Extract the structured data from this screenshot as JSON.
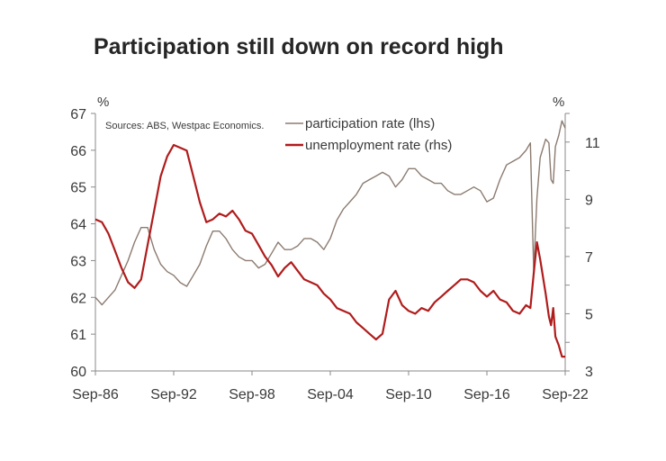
{
  "chart_data": {
    "type": "line",
    "title": "Participation still down on record high",
    "source_note": "Sources: ABS, Westpac Economics.",
    "left_axis": {
      "unit": "%",
      "ylim": [
        60,
        67
      ],
      "ticks": [
        "60",
        "61",
        "62",
        "63",
        "64",
        "65",
        "66",
        "67"
      ]
    },
    "right_axis": {
      "unit": "%",
      "ylim": [
        3,
        12
      ],
      "ticks": [
        "3",
        "5",
        "7",
        "9",
        "11"
      ]
    },
    "x_ticks": [
      "Sep-86",
      "Sep-92",
      "Sep-98",
      "Sep-04",
      "Sep-10",
      "Sep-16",
      "Sep-22"
    ],
    "x_range": [
      "1986-09",
      "2022-09"
    ],
    "legend_position": "top-right",
    "grid": false,
    "series": [
      {
        "name": "participation rate (lhs)",
        "axis": "left",
        "color": "#8c7b70",
        "points": [
          [
            "1986-09",
            62.0
          ],
          [
            "1987-03",
            61.8
          ],
          [
            "1987-09",
            62.0
          ],
          [
            "1988-03",
            62.2
          ],
          [
            "1988-09",
            62.6
          ],
          [
            "1989-03",
            63.0
          ],
          [
            "1989-09",
            63.5
          ],
          [
            "1990-03",
            63.9
          ],
          [
            "1990-09",
            63.9
          ],
          [
            "1991-03",
            63.3
          ],
          [
            "1991-09",
            62.9
          ],
          [
            "1992-03",
            62.7
          ],
          [
            "1992-09",
            62.6
          ],
          [
            "1993-03",
            62.4
          ],
          [
            "1993-09",
            62.3
          ],
          [
            "1994-03",
            62.6
          ],
          [
            "1994-09",
            62.9
          ],
          [
            "1995-03",
            63.4
          ],
          [
            "1995-09",
            63.8
          ],
          [
            "1996-03",
            63.8
          ],
          [
            "1996-09",
            63.6
          ],
          [
            "1997-03",
            63.3
          ],
          [
            "1997-09",
            63.1
          ],
          [
            "1998-03",
            63.0
          ],
          [
            "1998-09",
            63.0
          ],
          [
            "1999-03",
            62.8
          ],
          [
            "1999-09",
            62.9
          ],
          [
            "2000-03",
            63.2
          ],
          [
            "2000-09",
            63.5
          ],
          [
            "2001-03",
            63.3
          ],
          [
            "2001-09",
            63.3
          ],
          [
            "2002-03",
            63.4
          ],
          [
            "2002-09",
            63.6
          ],
          [
            "2003-03",
            63.6
          ],
          [
            "2003-09",
            63.5
          ],
          [
            "2004-03",
            63.3
          ],
          [
            "2004-09",
            63.6
          ],
          [
            "2005-03",
            64.1
          ],
          [
            "2005-09",
            64.4
          ],
          [
            "2006-03",
            64.6
          ],
          [
            "2006-09",
            64.8
          ],
          [
            "2007-03",
            65.1
          ],
          [
            "2007-09",
            65.2
          ],
          [
            "2008-03",
            65.3
          ],
          [
            "2008-09",
            65.4
          ],
          [
            "2009-03",
            65.3
          ],
          [
            "2009-09",
            65.0
          ],
          [
            "2010-03",
            65.2
          ],
          [
            "2010-09",
            65.5
          ],
          [
            "2011-03",
            65.5
          ],
          [
            "2011-09",
            65.3
          ],
          [
            "2012-03",
            65.2
          ],
          [
            "2012-09",
            65.1
          ],
          [
            "2013-03",
            65.1
          ],
          [
            "2013-09",
            64.9
          ],
          [
            "2014-03",
            64.8
          ],
          [
            "2014-09",
            64.8
          ],
          [
            "2015-03",
            64.9
          ],
          [
            "2015-09",
            65.0
          ],
          [
            "2016-03",
            64.9
          ],
          [
            "2016-09",
            64.6
          ],
          [
            "2017-03",
            64.7
          ],
          [
            "2017-09",
            65.2
          ],
          [
            "2018-03",
            65.6
          ],
          [
            "2018-09",
            65.7
          ],
          [
            "2019-03",
            65.8
          ],
          [
            "2019-09",
            66.0
          ],
          [
            "2020-01",
            66.2
          ],
          [
            "2020-04",
            62.7
          ],
          [
            "2020-07",
            64.7
          ],
          [
            "2020-10",
            65.8
          ],
          [
            "2021-03",
            66.3
          ],
          [
            "2021-06",
            66.2
          ],
          [
            "2021-08",
            65.2
          ],
          [
            "2021-10",
            65.1
          ],
          [
            "2021-12",
            66.1
          ],
          [
            "2022-03",
            66.4
          ],
          [
            "2022-06",
            66.8
          ],
          [
            "2022-09",
            66.6
          ]
        ]
      },
      {
        "name": "unemployment rate (rhs)",
        "axis": "right",
        "color": "#b01c1c",
        "points": [
          [
            "1986-09",
            8.3
          ],
          [
            "1987-03",
            8.2
          ],
          [
            "1987-09",
            7.8
          ],
          [
            "1988-03",
            7.2
          ],
          [
            "1988-09",
            6.6
          ],
          [
            "1989-03",
            6.1
          ],
          [
            "1989-09",
            5.9
          ],
          [
            "1990-03",
            6.2
          ],
          [
            "1990-09",
            7.4
          ],
          [
            "1991-03",
            8.6
          ],
          [
            "1991-09",
            9.8
          ],
          [
            "1992-03",
            10.5
          ],
          [
            "1992-09",
            10.9
          ],
          [
            "1993-03",
            10.8
          ],
          [
            "1993-09",
            10.7
          ],
          [
            "1994-03",
            9.8
          ],
          [
            "1994-09",
            8.9
          ],
          [
            "1995-03",
            8.2
          ],
          [
            "1995-09",
            8.3
          ],
          [
            "1996-03",
            8.5
          ],
          [
            "1996-09",
            8.4
          ],
          [
            "1997-03",
            8.6
          ],
          [
            "1997-09",
            8.3
          ],
          [
            "1998-03",
            7.9
          ],
          [
            "1998-09",
            7.8
          ],
          [
            "1999-03",
            7.4
          ],
          [
            "1999-09",
            7.0
          ],
          [
            "2000-03",
            6.7
          ],
          [
            "2000-09",
            6.3
          ],
          [
            "2001-03",
            6.6
          ],
          [
            "2001-09",
            6.8
          ],
          [
            "2002-03",
            6.5
          ],
          [
            "2002-09",
            6.2
          ],
          [
            "2003-03",
            6.1
          ],
          [
            "2003-09",
            6.0
          ],
          [
            "2004-03",
            5.7
          ],
          [
            "2004-09",
            5.5
          ],
          [
            "2005-03",
            5.2
          ],
          [
            "2005-09",
            5.1
          ],
          [
            "2006-03",
            5.0
          ],
          [
            "2006-09",
            4.7
          ],
          [
            "2007-03",
            4.5
          ],
          [
            "2007-09",
            4.3
          ],
          [
            "2008-03",
            4.1
          ],
          [
            "2008-09",
            4.3
          ],
          [
            "2009-03",
            5.5
          ],
          [
            "2009-09",
            5.8
          ],
          [
            "2010-03",
            5.3
          ],
          [
            "2010-09",
            5.1
          ],
          [
            "2011-03",
            5.0
          ],
          [
            "2011-09",
            5.2
          ],
          [
            "2012-03",
            5.1
          ],
          [
            "2012-09",
            5.4
          ],
          [
            "2013-03",
            5.6
          ],
          [
            "2013-09",
            5.8
          ],
          [
            "2014-03",
            6.0
          ],
          [
            "2014-09",
            6.2
          ],
          [
            "2015-03",
            6.2
          ],
          [
            "2015-09",
            6.1
          ],
          [
            "2016-03",
            5.8
          ],
          [
            "2016-09",
            5.6
          ],
          [
            "2017-03",
            5.8
          ],
          [
            "2017-09",
            5.5
          ],
          [
            "2018-03",
            5.4
          ],
          [
            "2018-09",
            5.1
          ],
          [
            "2019-03",
            5.0
          ],
          [
            "2019-09",
            5.3
          ],
          [
            "2020-01",
            5.2
          ],
          [
            "2020-04",
            6.4
          ],
          [
            "2020-07",
            7.5
          ],
          [
            "2020-10",
            6.9
          ],
          [
            "2021-03",
            5.7
          ],
          [
            "2021-06",
            4.9
          ],
          [
            "2021-08",
            4.6
          ],
          [
            "2021-10",
            5.2
          ],
          [
            "2021-12",
            4.2
          ],
          [
            "2022-03",
            3.9
          ],
          [
            "2022-06",
            3.5
          ],
          [
            "2022-09",
            3.5
          ]
        ]
      }
    ]
  }
}
